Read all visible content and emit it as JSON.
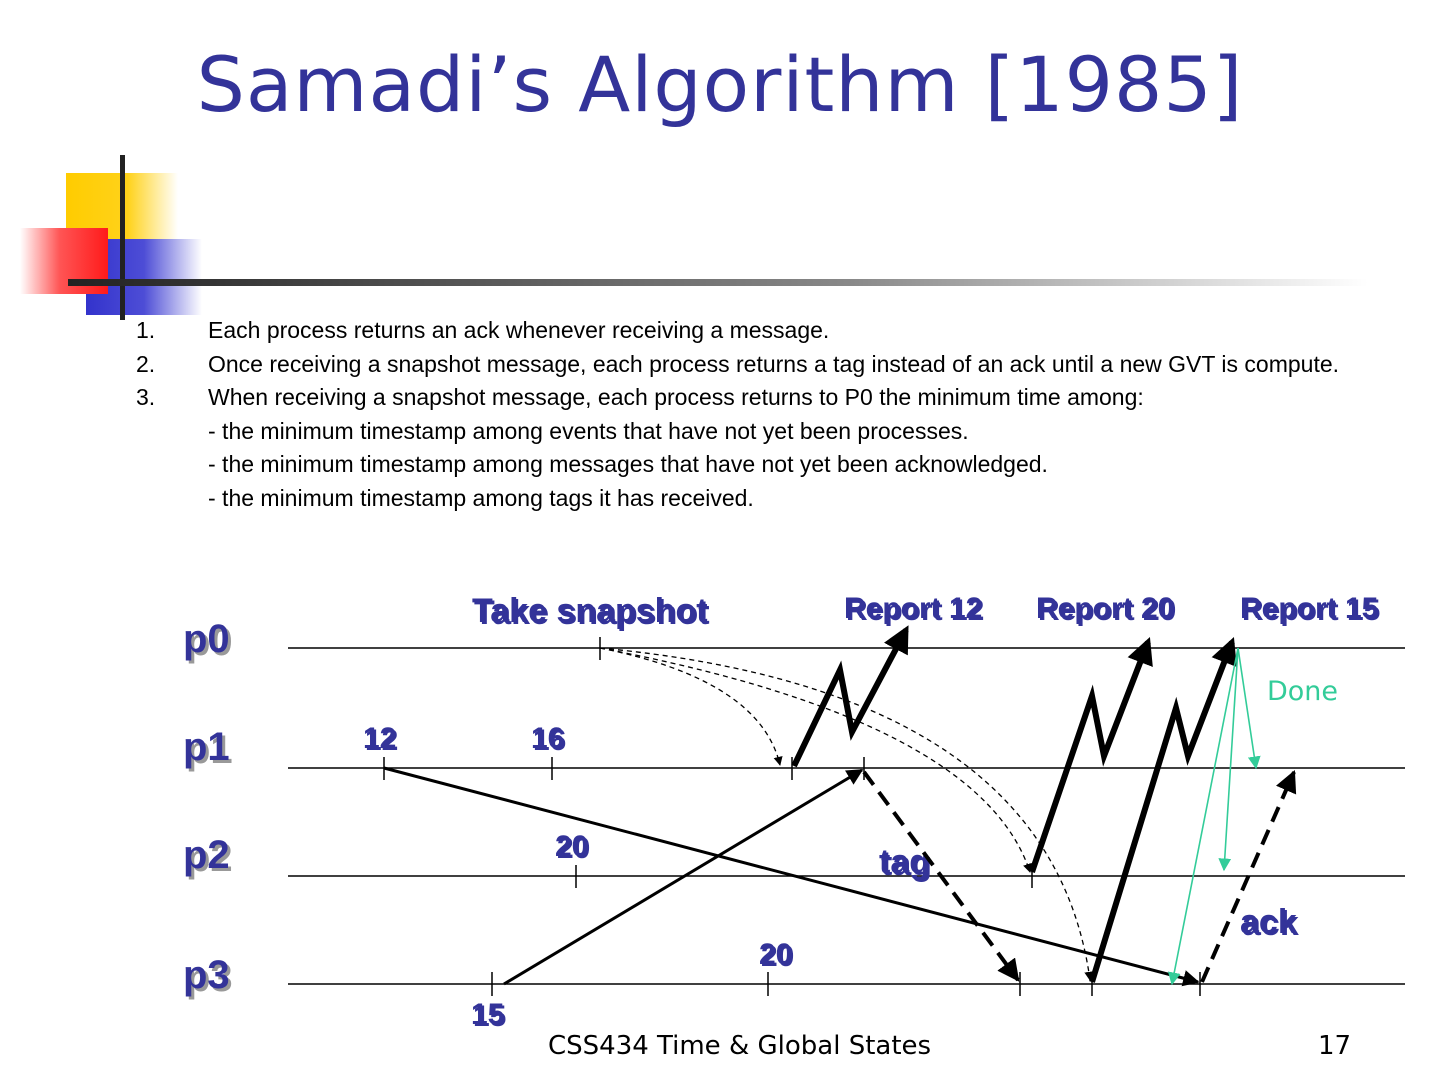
{
  "slide": {
    "title": "Samadi’s Algorithm [1985]",
    "points": [
      {
        "num": "1.",
        "text": "Each process returns an ack whenever receiving a message.",
        "subs": []
      },
      {
        "num": "2.",
        "text": "Once receiving a snapshot message, each process returns a tag instead of an ack until a new GVT is compute.",
        "subs": []
      },
      {
        "num": "3.",
        "text": "When receiving a snapshot message, each process returns to P0 the minimum time among:",
        "subs": [
          "- the minimum timestamp among events that have not yet been processes.",
          "- the minimum timestamp among messages that have not yet been acknowledged.",
          "- the minimum timestamp among tags it has received."
        ]
      }
    ],
    "footer_course": "CSS434 Time & Global States",
    "footer_page": "17"
  },
  "diagram": {
    "processes": [
      "p0",
      "p1",
      "p2",
      "p3"
    ],
    "event_labels": {
      "p1_a": "12",
      "p1_b": "16",
      "p2_a": "20",
      "p3_a": "20",
      "p3_start": "15"
    },
    "annotations": {
      "take_snapshot": "Take snapshot",
      "report_1": "Report 12",
      "report_2": "Report 20",
      "report_3": "Report 15",
      "done": "Done",
      "tag": "tag",
      "ack": "ack"
    },
    "colors": {
      "title": "#333399",
      "label": "#333399",
      "done": "#33cc99",
      "line": "#000000"
    }
  }
}
